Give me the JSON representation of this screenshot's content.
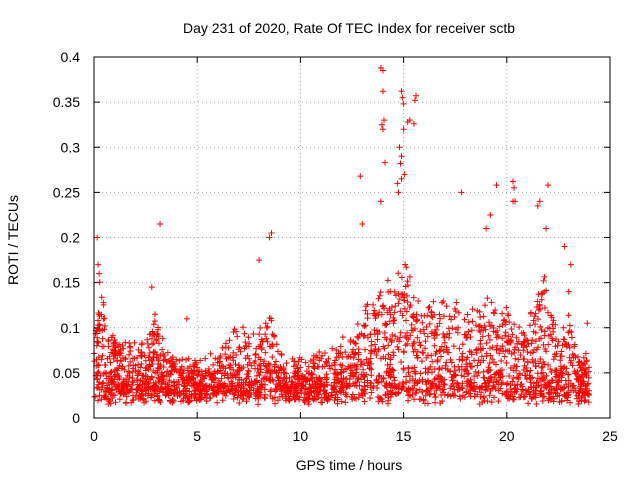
{
  "chart_data": {
    "type": "scatter",
    "title": "Day 231 of 2020, Rate Of TEC Index for receiver sctb",
    "xlabel": "GPS time / hours",
    "ylabel": "ROTI / TECUs",
    "xlim": [
      0,
      25
    ],
    "ylim": [
      0,
      0.4
    ],
    "xticks": [
      0,
      5,
      10,
      15,
      20,
      25
    ],
    "xtick_labels": [
      "0",
      "5",
      "10",
      "15",
      "20",
      "25"
    ],
    "yticks": [
      0,
      0.05,
      0.1,
      0.15,
      0.2,
      0.25,
      0.3,
      0.35,
      0.4
    ],
    "ytick_labels": [
      "0",
      "0.05",
      "0.1",
      "0.15",
      "0.2",
      "0.25",
      "0.3",
      "0.35",
      "0.4"
    ],
    "grid": true,
    "marker": "+",
    "marker_color": "#ff0000",
    "envelope": {
      "x": [
        0,
        0.3,
        0.6,
        1,
        1.5,
        2,
        2.5,
        3,
        3.5,
        4,
        4.5,
        5,
        5.5,
        6,
        6.5,
        7,
        7.5,
        8,
        8.5,
        9,
        9.5,
        10,
        10.5,
        11,
        11.5,
        12,
        12.5,
        13,
        13.5,
        14,
        14.5,
        15,
        15.5,
        16,
        16.5,
        17,
        17.5,
        18,
        18.5,
        19,
        19.5,
        20,
        20.5,
        21,
        21.5,
        22,
        22.5,
        23,
        23.5,
        24
      ],
      "y": [
        0.09,
        0.15,
        0.1,
        0.09,
        0.08,
        0.08,
        0.08,
        0.11,
        0.07,
        0.06,
        0.06,
        0.06,
        0.06,
        0.07,
        0.08,
        0.1,
        0.09,
        0.09,
        0.12,
        0.07,
        0.06,
        0.06,
        0.06,
        0.07,
        0.07,
        0.08,
        0.1,
        0.12,
        0.13,
        0.16,
        0.15,
        0.18,
        0.14,
        0.13,
        0.13,
        0.14,
        0.12,
        0.12,
        0.12,
        0.13,
        0.13,
        0.12,
        0.1,
        0.1,
        0.14,
        0.16,
        0.1,
        0.12,
        0.07,
        0.06
      ]
    },
    "baseline": 0.025,
    "point_count": 2600,
    "highlights": [
      {
        "x": 0.15,
        "y": 0.2
      },
      {
        "x": 0.2,
        "y": 0.17
      },
      {
        "x": 0.25,
        "y": 0.16
      },
      {
        "x": 3.2,
        "y": 0.215
      },
      {
        "x": 2.8,
        "y": 0.145
      },
      {
        "x": 4.5,
        "y": 0.11
      },
      {
        "x": 8.6,
        "y": 0.205
      },
      {
        "x": 8.5,
        "y": 0.2
      },
      {
        "x": 8.0,
        "y": 0.175
      },
      {
        "x": 12.9,
        "y": 0.268
      },
      {
        "x": 13.0,
        "y": 0.215
      },
      {
        "x": 13.9,
        "y": 0.388
      },
      {
        "x": 14.0,
        "y": 0.385
      },
      {
        "x": 14.0,
        "y": 0.362
      },
      {
        "x": 13.95,
        "y": 0.325
      },
      {
        "x": 14.0,
        "y": 0.32
      },
      {
        "x": 14.05,
        "y": 0.33
      },
      {
        "x": 14.1,
        "y": 0.283
      },
      {
        "x": 13.9,
        "y": 0.24
      },
      {
        "x": 14.9,
        "y": 0.362
      },
      {
        "x": 14.95,
        "y": 0.355
      },
      {
        "x": 15.0,
        "y": 0.348
      },
      {
        "x": 15.6,
        "y": 0.357
      },
      {
        "x": 15.55,
        "y": 0.352
      },
      {
        "x": 15.2,
        "y": 0.328
      },
      {
        "x": 15.3,
        "y": 0.33
      },
      {
        "x": 15.5,
        "y": 0.326
      },
      {
        "x": 15.0,
        "y": 0.32
      },
      {
        "x": 14.8,
        "y": 0.3
      },
      {
        "x": 14.9,
        "y": 0.29
      },
      {
        "x": 14.85,
        "y": 0.282
      },
      {
        "x": 14.9,
        "y": 0.265
      },
      {
        "x": 15.05,
        "y": 0.27
      },
      {
        "x": 14.7,
        "y": 0.26
      },
      {
        "x": 14.75,
        "y": 0.25
      },
      {
        "x": 17.8,
        "y": 0.25
      },
      {
        "x": 19.2,
        "y": 0.225
      },
      {
        "x": 19.0,
        "y": 0.21
      },
      {
        "x": 19.5,
        "y": 0.258
      },
      {
        "x": 20.3,
        "y": 0.262
      },
      {
        "x": 20.35,
        "y": 0.255
      },
      {
        "x": 20.3,
        "y": 0.24
      },
      {
        "x": 20.4,
        "y": 0.24
      },
      {
        "x": 21.5,
        "y": 0.235
      },
      {
        "x": 21.6,
        "y": 0.24
      },
      {
        "x": 22.0,
        "y": 0.258
      },
      {
        "x": 21.9,
        "y": 0.21
      },
      {
        "x": 22.8,
        "y": 0.19
      },
      {
        "x": 23.1,
        "y": 0.17
      },
      {
        "x": 23.0,
        "y": 0.14
      },
      {
        "x": 23.9,
        "y": 0.105
      }
    ]
  }
}
